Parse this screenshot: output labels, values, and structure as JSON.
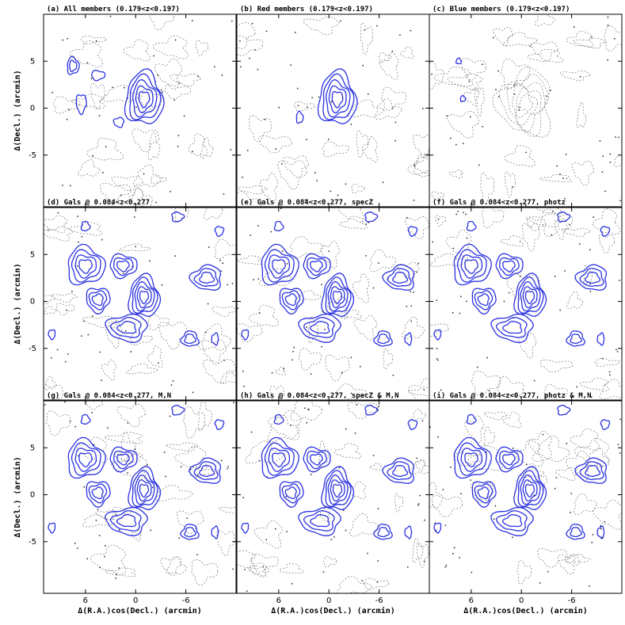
{
  "chart_data": {
    "type": "contour",
    "xlabel": "Δ(R.A.)cos(Decl.) (arcmin)",
    "ylabel": "Δ(Decl.) (arcmin)",
    "x_ticks": [
      "6",
      "0",
      "-6"
    ],
    "y_ticks": [
      "5",
      "0",
      "-5"
    ],
    "x_tick_values": [
      6,
      0,
      -6
    ],
    "y_tick_values": [
      5,
      0,
      -5
    ],
    "xlim": [
      11,
      -12
    ],
    "ylim": [
      -10.5,
      10
    ],
    "layout": "3x3 grid",
    "panels": [
      {
        "id": "a",
        "title": "(a) All members (0.179<z<0.197)",
        "blue_structure": "compact"
      },
      {
        "id": "b",
        "title": "(b) Red members (0.179<z<0.197)",
        "blue_structure": "compact-red"
      },
      {
        "id": "c",
        "title": "(c) Blue members (0.179<z<0.197)",
        "blue_structure": "sparse"
      },
      {
        "id": "d",
        "title": "(d) Gals @ 0.084<z<0.277",
        "blue_structure": "extended"
      },
      {
        "id": "e",
        "title": "(e) Gals @ 0.084<z<0.277, specZ",
        "blue_structure": "extended"
      },
      {
        "id": "f",
        "title": "(f) Gals @ 0.084<z<0.277, photz",
        "blue_structure": "extended"
      },
      {
        "id": "g",
        "title": "(g) Gals @ 0.084<z<0.277, M,N",
        "blue_structure": "extended"
      },
      {
        "id": "h",
        "title": "(h) Gals @ 0.084<z<0.277, specZ & M,N",
        "blue_structure": "extended"
      },
      {
        "id": "i",
        "title": "(i) Gals @ 0.084<z<0.277, photz & M,N",
        "blue_structure": "extended"
      }
    ],
    "blue_peaks": {
      "compact": [
        {
          "x": -1,
          "y": 1,
          "rx": 2.2,
          "ry": 2.8,
          "levels": 5
        },
        {
          "x": 7.5,
          "y": 4.5,
          "rx": 0.7,
          "ry": 0.9,
          "levels": 2
        },
        {
          "x": 4.5,
          "y": 3.5,
          "rx": 0.8,
          "ry": 0.5,
          "levels": 1
        },
        {
          "x": 6.5,
          "y": 0.5,
          "rx": 0.6,
          "ry": 1.0,
          "levels": 1
        },
        {
          "x": 2,
          "y": -1.5,
          "rx": 0.6,
          "ry": 0.5,
          "levels": 1
        }
      ],
      "compact-red": [
        {
          "x": -1,
          "y": 1,
          "rx": 2.2,
          "ry": 2.8,
          "levels": 5
        },
        {
          "x": 3.5,
          "y": -1,
          "rx": 0.4,
          "ry": 0.6,
          "levels": 1
        }
      ],
      "sparse": [
        {
          "x": 7.5,
          "y": 5,
          "rx": 0.3,
          "ry": 0.3,
          "levels": 1
        },
        {
          "x": 7.0,
          "y": 1,
          "rx": 0.3,
          "ry": 0.3,
          "levels": 1
        }
      ],
      "extended": [
        {
          "x": -1,
          "y": 0.5,
          "rx": 1.8,
          "ry": 2.2,
          "levels": 5
        },
        {
          "x": 6,
          "y": 3.8,
          "rx": 2.2,
          "ry": 2.0,
          "levels": 4
        },
        {
          "x": 1.5,
          "y": 3.8,
          "rx": 1.6,
          "ry": 1.2,
          "levels": 3
        },
        {
          "x": 4.5,
          "y": 0.2,
          "rx": 1.4,
          "ry": 1.3,
          "levels": 3
        },
        {
          "x": 1,
          "y": -2.8,
          "rx": 2.4,
          "ry": 1.4,
          "levels": 3
        },
        {
          "x": -8.5,
          "y": 2.5,
          "rx": 1.8,
          "ry": 1.3,
          "levels": 3
        },
        {
          "x": -6.5,
          "y": -4,
          "rx": 1.0,
          "ry": 0.8,
          "levels": 2
        },
        {
          "x": 6,
          "y": 8,
          "rx": 0.5,
          "ry": 0.5,
          "levels": 1
        },
        {
          "x": -5,
          "y": 9,
          "rx": 0.7,
          "ry": 0.5,
          "levels": 1
        },
        {
          "x": -10,
          "y": 7.5,
          "rx": 0.5,
          "ry": 0.5,
          "levels": 1
        },
        {
          "x": 10,
          "y": -3.5,
          "rx": 0.4,
          "ry": 0.5,
          "levels": 1
        },
        {
          "x": -9.5,
          "y": -4,
          "rx": 0.4,
          "ry": 0.6,
          "levels": 1
        }
      ]
    }
  }
}
